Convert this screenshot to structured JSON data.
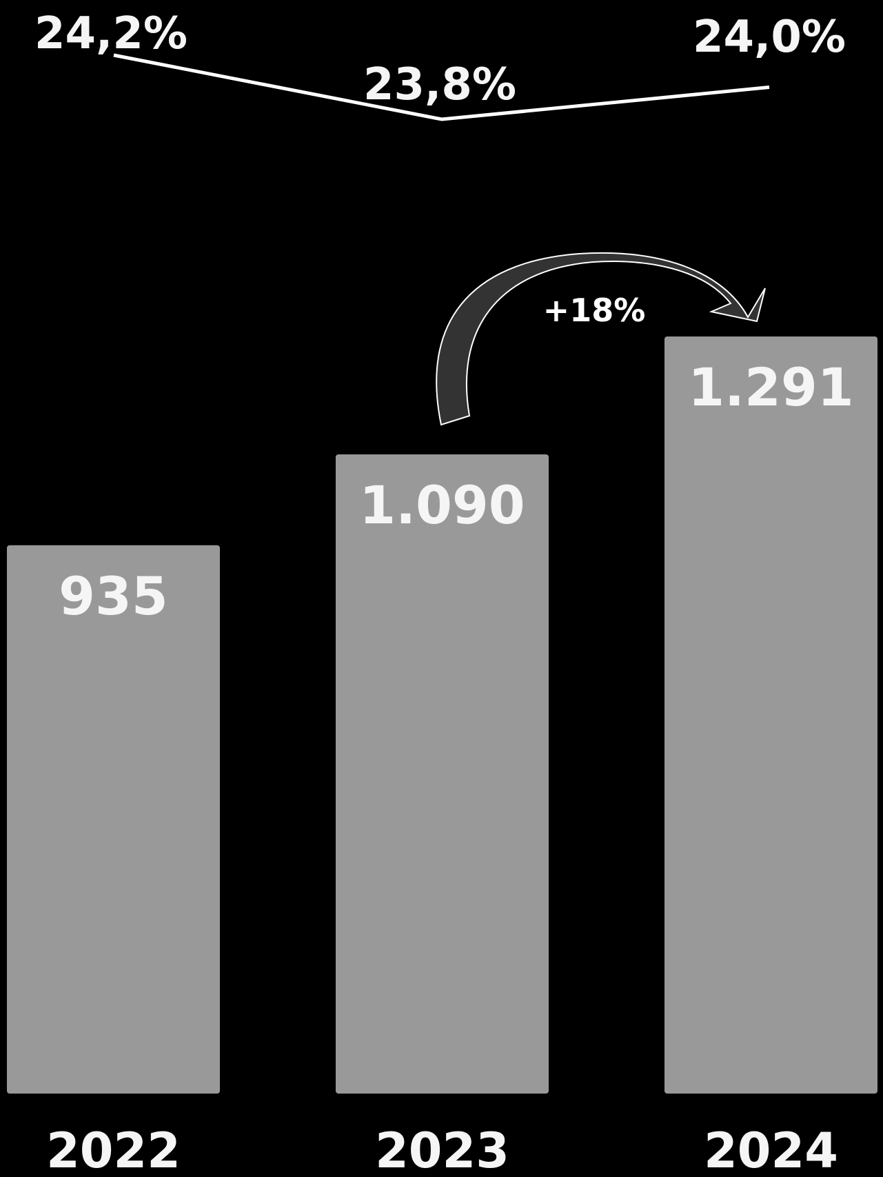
{
  "chart_data": {
    "type": "bar",
    "categories": [
      "2022",
      "2023",
      "2024"
    ],
    "values": [
      935,
      1090,
      1291
    ],
    "value_labels": [
      "935",
      "1.090",
      "1.291"
    ],
    "ylim": [
      0,
      1400
    ],
    "line_series": {
      "values": [
        24.2,
        23.8,
        24.0
      ],
      "labels": [
        "24,2%",
        "23,8%",
        "24,0%"
      ]
    },
    "annotation": "+18%",
    "grid": false
  },
  "colors": {
    "background": "#000000",
    "bar": "#999999",
    "text": "#f5f5f5",
    "line": "#ffffff",
    "arrow": "#333333"
  }
}
